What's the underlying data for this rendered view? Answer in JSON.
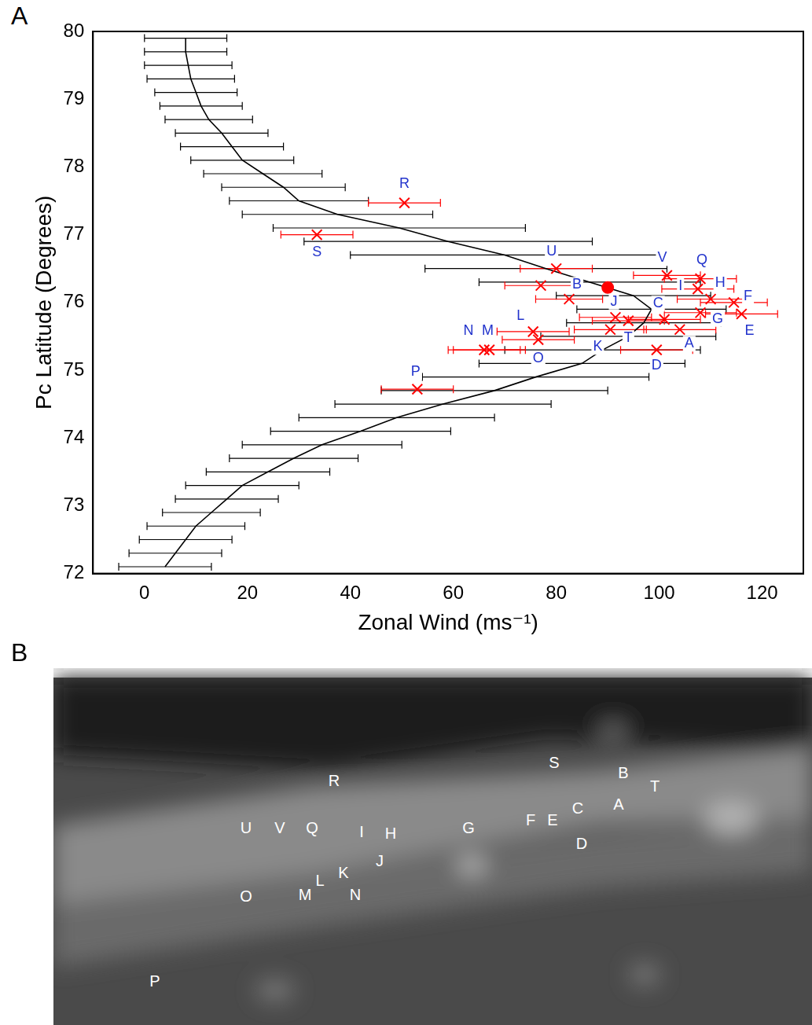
{
  "panel_a": {
    "label": "A"
  },
  "chart_data": {
    "type": "scatter",
    "x_label": "Zonal Wind (ms⁻¹)",
    "y_label": "Pc Latitude (Degrees)",
    "xlim": [
      -10,
      128
    ],
    "xticks": [
      0,
      20,
      40,
      60,
      80,
      100,
      120
    ],
    "ylim": [
      72,
      80
    ],
    "yticks": [
      72,
      73,
      74,
      75,
      76,
      77,
      78,
      79,
      80
    ],
    "grid": false,
    "series": [
      {
        "type": "line",
        "color": "#000000",
        "marker": "none",
        "line_style": "solid",
        "x": [
          4,
          6,
          8,
          10,
          13,
          16,
          19,
          24,
          29,
          34.5,
          42,
          49,
          58,
          68,
          76,
          85,
          89,
          94,
          97,
          98.5,
          95,
          86.5,
          78,
          70,
          59,
          49.5,
          37.5,
          30,
          27,
          23,
          19,
          17,
          15,
          12.5,
          11,
          10,
          9,
          8.5,
          8,
          8
        ],
        "y": [
          72.1,
          72.3,
          72.5,
          72.7,
          72.9,
          73.1,
          73.3,
          73.5,
          73.7,
          73.9,
          74.1,
          74.3,
          74.5,
          74.7,
          74.9,
          75.1,
          75.3,
          75.5,
          75.7,
          75.9,
          76.1,
          76.3,
          76.5,
          76.7,
          76.9,
          77.1,
          77.3,
          77.5,
          77.7,
          77.9,
          78.1,
          78.3,
          78.5,
          78.7,
          78.9,
          79.1,
          79.3,
          79.5,
          79.7,
          79.9
        ],
        "x_error": [
          9,
          9,
          9,
          9.5,
          9.5,
          10,
          11,
          12,
          12.5,
          15.5,
          17.5,
          19,
          21,
          22,
          22,
          20,
          19,
          17,
          15,
          14.5,
          15,
          21.5,
          23.5,
          30,
          28,
          24.5,
          18.5,
          13.5,
          12,
          11.5,
          10,
          10,
          9,
          8.5,
          8,
          8,
          8.5,
          8.5,
          8,
          8
        ]
      },
      {
        "type": "scatter",
        "color": "#ff0000",
        "marker": "x",
        "x": [
          104,
          82.5,
          101,
          99.5,
          116,
          114.5,
          108,
          110,
          107.5,
          91.5,
          90.5,
          75.5,
          67,
          66,
          76.5,
          53,
          108,
          50.5,
          33.5,
          94,
          80,
          101.5,
          77
        ],
        "y": [
          75.6,
          76.05,
          75.75,
          75.3,
          75.83,
          76.0,
          75.85,
          76.05,
          76.2,
          75.78,
          75.6,
          75.57,
          75.3,
          75.3,
          75.45,
          74.72,
          76.35,
          77.47,
          77.0,
          75.73,
          76.5,
          76.4,
          76.25
        ],
        "x_error": [
          7,
          6.5,
          7,
          7,
          7,
          6.5,
          7,
          6.5,
          7,
          7,
          7,
          7,
          7,
          7,
          7,
          7,
          7,
          7,
          7,
          7,
          7,
          6.5,
          7
        ],
        "point_labels": [
          "A",
          "B",
          "C",
          "D",
          "E",
          "F",
          "G",
          "H",
          "I",
          "J",
          "K",
          "L",
          "M",
          "N",
          "O",
          "P",
          "Q",
          "R",
          "S",
          "T",
          "U",
          "V",
          null
        ]
      },
      {
        "type": "scatter",
        "color": "#ff0000",
        "marker": "circle",
        "x": [
          90
        ],
        "y": [
          76.22
        ]
      }
    ]
  },
  "panel_b": {
    "label": "B",
    "type": "image",
    "image_labels": [
      "A",
      "B",
      "C",
      "D",
      "E",
      "F",
      "G",
      "H",
      "I",
      "J",
      "K",
      "L",
      "M",
      "N",
      "O",
      "P",
      "Q",
      "R",
      "S",
      "T",
      "U",
      "V"
    ]
  }
}
